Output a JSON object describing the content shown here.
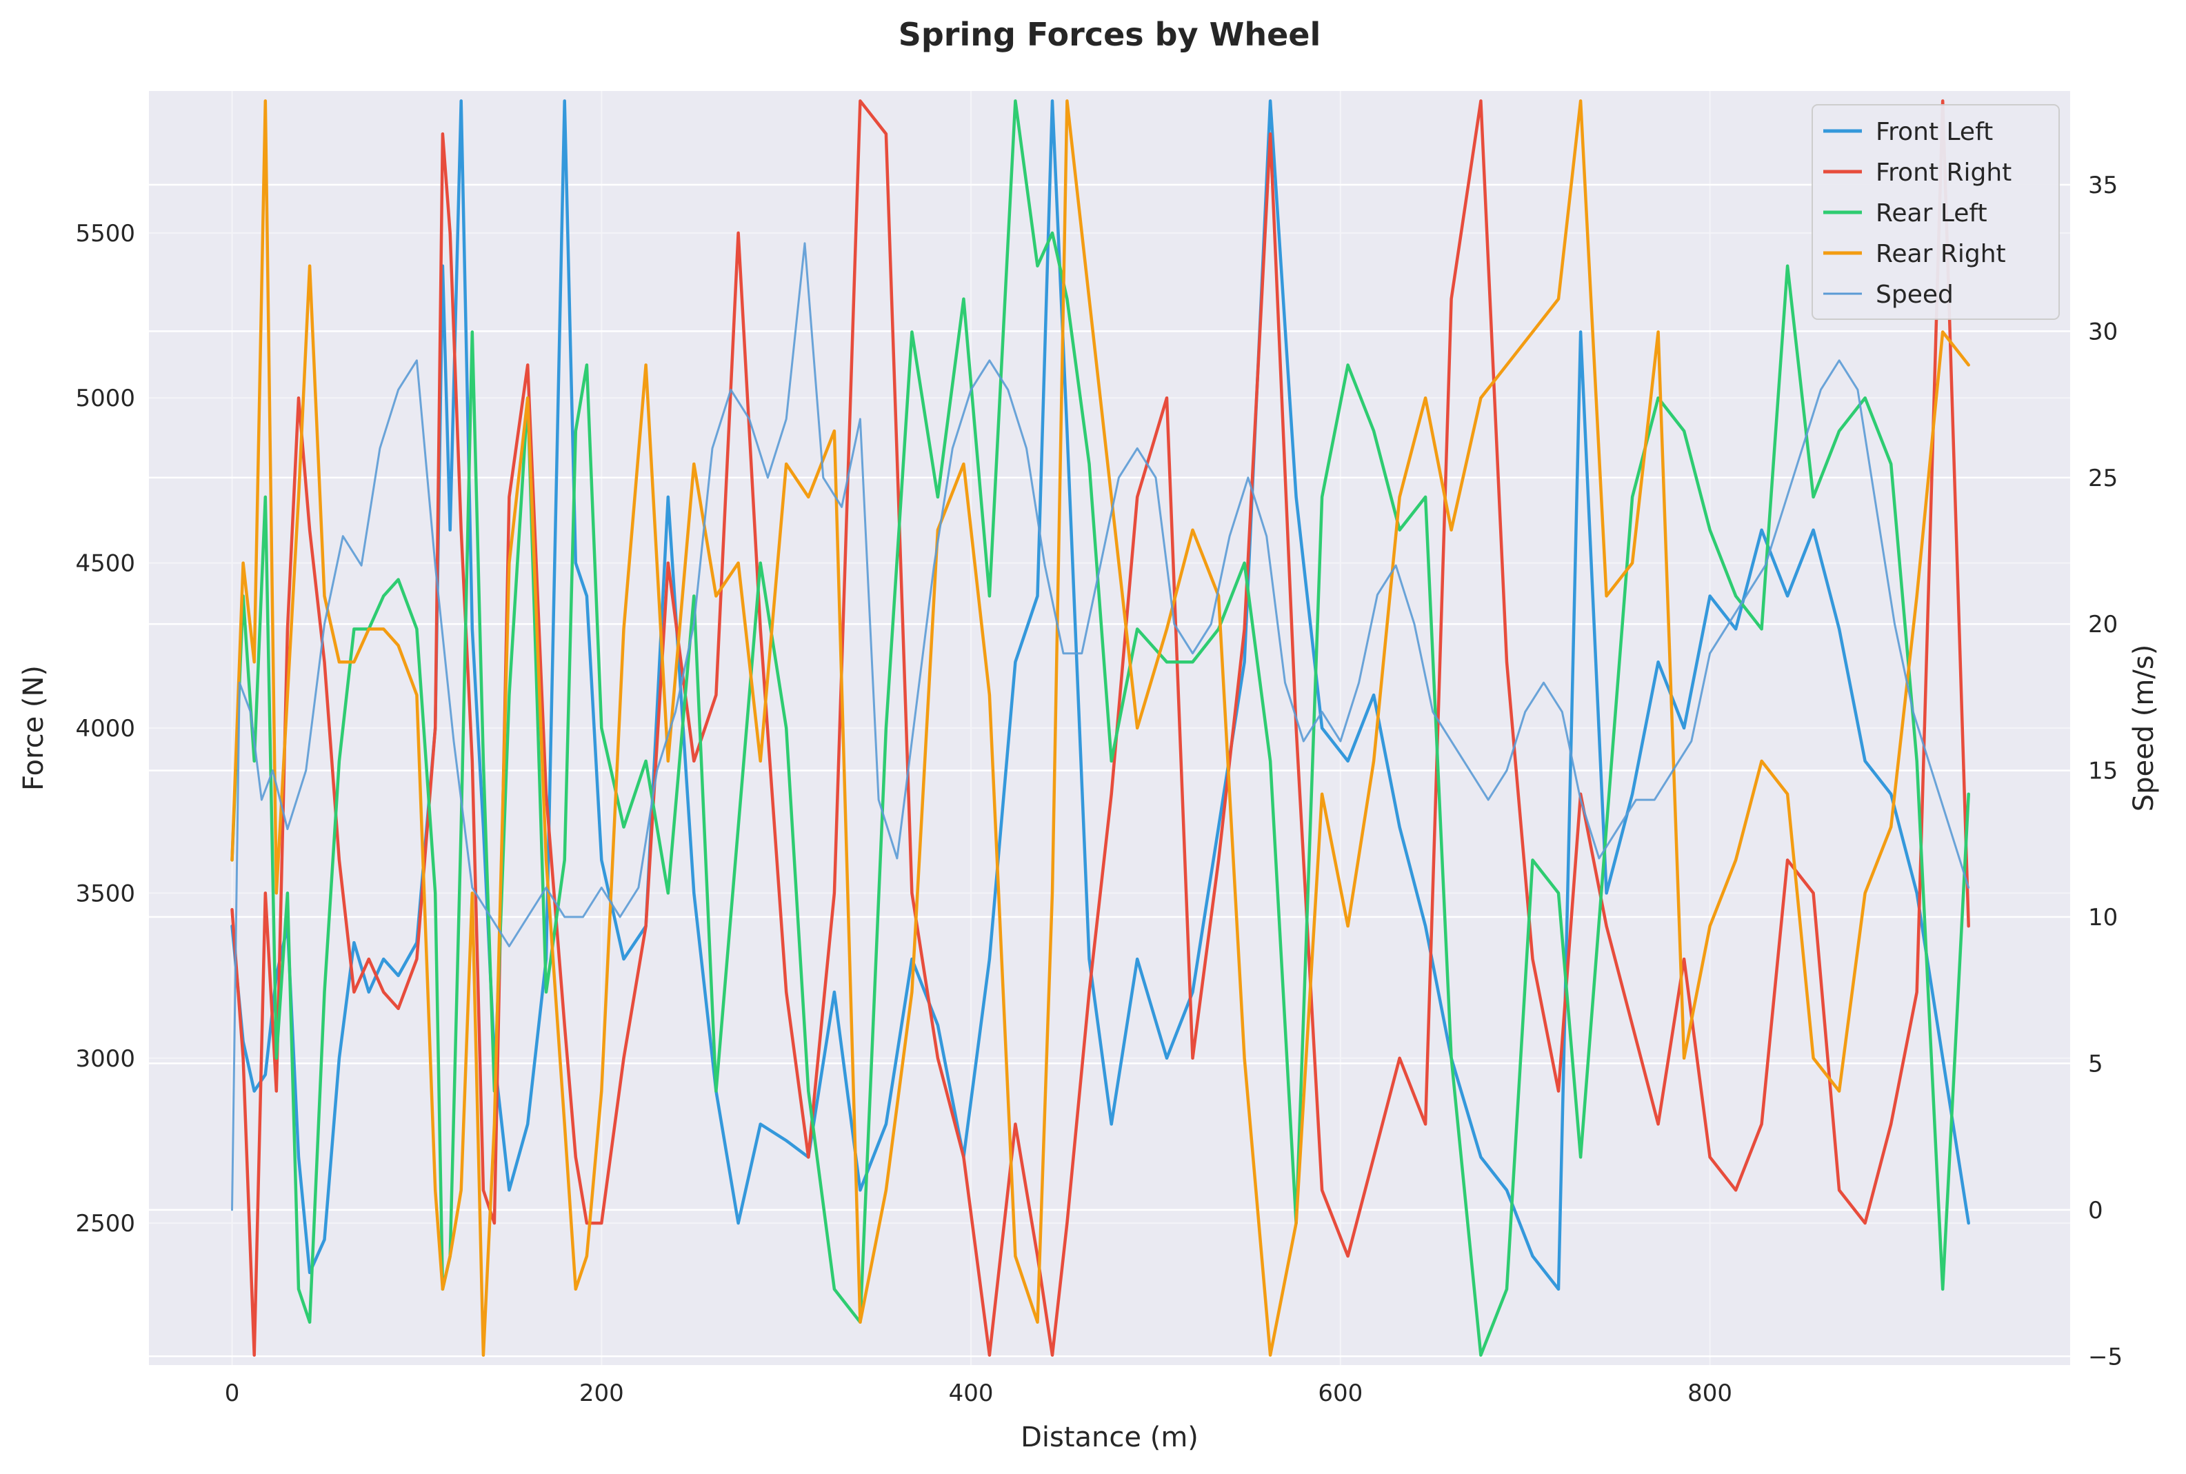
{
  "chart_data": {
    "type": "line",
    "title": "Spring Forces by Wheel",
    "xlabel": "Distance (m)",
    "ylabel": "Force (N)",
    "y2label": "Speed (m/s)",
    "xlim": [
      -45,
      995
    ],
    "ylim": [
      2070,
      5930
    ],
    "y2lim": [
      -5.3,
      38.2
    ],
    "x_ticks": [
      0,
      200,
      400,
      600,
      800
    ],
    "y_ticks": [
      2500,
      3000,
      3500,
      4000,
      4500,
      5000,
      5500
    ],
    "y2_ticks": [
      -5,
      0,
      5,
      10,
      15,
      20,
      25,
      30,
      35
    ],
    "grid": true,
    "legend_position": "top-right",
    "series": [
      {
        "name": "Front Left",
        "color": "#3498db",
        "axis": "left",
        "x": [
          0,
          6,
          12,
          18,
          24,
          30,
          36,
          42,
          50,
          58,
          66,
          74,
          82,
          90,
          100,
          110,
          114,
          118,
          124,
          130,
          136,
          142,
          150,
          160,
          170,
          180,
          186,
          192,
          200,
          212,
          224,
          236,
          250,
          262,
          274,
          286,
          300,
          312,
          326,
          340,
          354,
          368,
          382,
          396,
          410,
          424,
          436,
          444,
          452,
          464,
          476,
          490,
          506,
          520,
          534,
          548,
          562,
          576,
          590,
          604,
          618,
          632,
          646,
          660,
          676,
          690,
          704,
          718,
          730,
          744,
          758,
          772,
          786,
          800,
          814,
          828,
          842,
          856,
          870,
          884,
          898,
          912,
          926,
          940
        ],
        "y": [
          3400,
          3050,
          2900,
          2950,
          3250,
          3400,
          2700,
          2350,
          2450,
          3000,
          3350,
          3200,
          3300,
          3250,
          3350,
          4000,
          5400,
          4600,
          5900,
          4300,
          3700,
          3000,
          2600,
          2800,
          3300,
          5900,
          4500,
          4400,
          3600,
          3300,
          3400,
          4700,
          3500,
          2900,
          2500,
          2800,
          2750,
          2700,
          3200,
          2600,
          2800,
          3300,
          3100,
          2700,
          3300,
          4200,
          4400,
          5900,
          4900,
          3300,
          2800,
          3300,
          3000,
          3200,
          3700,
          4200,
          5900,
          4700,
          4000,
          3900,
          4100,
          3700,
          3400,
          3000,
          2700,
          2600,
          2400,
          2300,
          5200,
          3500,
          3800,
          4200,
          4000,
          4400,
          4300,
          4600,
          4400,
          4600,
          4300,
          3900,
          3800,
          3500,
          3000,
          2500
        ]
      },
      {
        "name": "Front Right",
        "color": "#e74c3c",
        "axis": "left",
        "x": [
          0,
          6,
          12,
          18,
          24,
          30,
          36,
          42,
          50,
          58,
          66,
          74,
          82,
          90,
          100,
          110,
          114,
          118,
          124,
          130,
          136,
          142,
          150,
          160,
          170,
          180,
          186,
          192,
          200,
          212,
          224,
          236,
          250,
          262,
          274,
          286,
          300,
          312,
          326,
          340,
          354,
          368,
          382,
          396,
          410,
          424,
          436,
          444,
          452,
          464,
          476,
          490,
          506,
          520,
          534,
          548,
          562,
          576,
          590,
          604,
          618,
          632,
          646,
          660,
          676,
          690,
          704,
          718,
          730,
          744,
          758,
          772,
          786,
          800,
          814,
          828,
          842,
          856,
          870,
          884,
          898,
          912,
          926,
          940
        ],
        "y": [
          3450,
          3000,
          2100,
          3500,
          2900,
          4300,
          5000,
          4600,
          4200,
          3600,
          3200,
          3300,
          3200,
          3150,
          3300,
          4000,
          5800,
          5500,
          4600,
          3900,
          2600,
          2500,
          4700,
          5100,
          3800,
          3100,
          2700,
          2500,
          2500,
          3000,
          3400,
          4500,
          3900,
          4100,
          5500,
          4300,
          3200,
          2700,
          3500,
          5900,
          5800,
          3500,
          3000,
          2700,
          2100,
          2800,
          2400,
          2100,
          2500,
          3200,
          3800,
          4700,
          5000,
          3000,
          3600,
          4300,
          5800,
          4000,
          2600,
          2400,
          2700,
          3000,
          2800,
          5300,
          5900,
          4200,
          3300,
          2900,
          3800,
          3400,
          3100,
          2800,
          3300,
          2700,
          2600,
          2800,
          3600,
          3500,
          2600,
          2500,
          2800,
          3200,
          5900,
          3400
        ]
      },
      {
        "name": "Rear Left",
        "color": "#2ecc71",
        "axis": "left",
        "x": [
          0,
          6,
          12,
          18,
          24,
          30,
          36,
          42,
          50,
          58,
          66,
          74,
          82,
          90,
          100,
          110,
          114,
          118,
          124,
          130,
          136,
          142,
          150,
          160,
          170,
          180,
          186,
          192,
          200,
          212,
          224,
          236,
          250,
          262,
          274,
          286,
          300,
          312,
          326,
          340,
          354,
          368,
          382,
          396,
          410,
          424,
          436,
          444,
          452,
          464,
          476,
          490,
          506,
          520,
          534,
          548,
          562,
          576,
          590,
          604,
          618,
          632,
          646,
          660,
          676,
          690,
          704,
          718,
          730,
          744,
          758,
          772,
          786,
          800,
          814,
          828,
          842,
          856,
          870,
          884,
          898,
          912,
          926,
          940
        ],
        "y": [
          3600,
          4400,
          3900,
          4700,
          3000,
          3500,
          2300,
          2200,
          3200,
          3900,
          4300,
          4300,
          4400,
          4450,
          4300,
          3500,
          2300,
          2400,
          3700,
          5200,
          3900,
          2900,
          4100,
          5000,
          3200,
          3600,
          4900,
          5100,
          4000,
          3700,
          3900,
          3500,
          4400,
          2900,
          3700,
          4500,
          4000,
          2900,
          2300,
          2200,
          4000,
          5200,
          4700,
          5300,
          4400,
          5900,
          5400,
          5500,
          5300,
          4800,
          3900,
          4300,
          4200,
          4200,
          4300,
          4500,
          3900,
          2500,
          4700,
          5100,
          4900,
          4600,
          4700,
          3000,
          2100,
          2300,
          3600,
          3500,
          2700,
          3700,
          4700,
          5000,
          4900,
          4600,
          4400,
          4300,
          5400,
          4700,
          4900,
          5000,
          4800,
          3900,
          2300,
          3800
        ]
      },
      {
        "name": "Rear Right",
        "color": "#f39c12",
        "axis": "left",
        "x": [
          0,
          6,
          12,
          18,
          24,
          30,
          36,
          42,
          50,
          58,
          66,
          74,
          82,
          90,
          100,
          110,
          114,
          118,
          124,
          130,
          136,
          142,
          150,
          160,
          170,
          180,
          186,
          192,
          200,
          212,
          224,
          236,
          250,
          262,
          274,
          286,
          300,
          312,
          326,
          340,
          354,
          368,
          382,
          396,
          410,
          424,
          436,
          444,
          452,
          464,
          476,
          490,
          506,
          520,
          534,
          548,
          562,
          576,
          590,
          604,
          618,
          632,
          646,
          660,
          676,
          690,
          704,
          718,
          730,
          744,
          758,
          772,
          786,
          800,
          814,
          828,
          842,
          856,
          870,
          884,
          898,
          912,
          926,
          940
        ],
        "y": [
          3600,
          4500,
          4200,
          5900,
          3500,
          4100,
          4700,
          5400,
          4400,
          4200,
          4200,
          4300,
          4300,
          4250,
          4100,
          2600,
          2300,
          2400,
          2600,
          3500,
          2100,
          2800,
          4500,
          5000,
          3600,
          2800,
          2300,
          2400,
          2900,
          4300,
          5100,
          3900,
          4800,
          4400,
          4500,
          3900,
          4800,
          4700,
          4900,
          2200,
          2600,
          3200,
          4600,
          4800,
          4100,
          2400,
          2200,
          3500,
          5900,
          5300,
          4700,
          4000,
          4300,
          4600,
          4400,
          3000,
          2100,
          2500,
          3800,
          3400,
          3900,
          4700,
          5000,
          4600,
          5000,
          5100,
          5200,
          5300,
          5900,
          4400,
          4500,
          5200,
          3000,
          3400,
          3600,
          3900,
          3800,
          3000,
          2900,
          3500,
          3700,
          4400,
          5200,
          5100
        ]
      },
      {
        "name": "Speed",
        "color": "#5b9bd5",
        "axis": "right",
        "x": [
          0,
          4,
          10,
          16,
          22,
          30,
          40,
          50,
          60,
          70,
          80,
          90,
          100,
          110,
          120,
          130,
          140,
          150,
          160,
          170,
          180,
          190,
          200,
          210,
          220,
          230,
          240,
          250,
          260,
          270,
          280,
          290,
          300,
          310,
          320,
          330,
          340,
          350,
          360,
          370,
          380,
          390,
          400,
          410,
          420,
          430,
          440,
          450,
          460,
          470,
          480,
          490,
          500,
          510,
          520,
          530,
          540,
          550,
          560,
          570,
          580,
          590,
          600,
          610,
          620,
          630,
          640,
          650,
          660,
          670,
          680,
          690,
          700,
          710,
          720,
          730,
          740,
          750,
          760,
          770,
          780,
          790,
          800,
          810,
          820,
          830,
          840,
          850,
          860,
          870,
          880,
          890,
          900,
          910,
          920,
          930,
          940
        ],
        "y": [
          0,
          18,
          17,
          14,
          15,
          13,
          15,
          20,
          23,
          22,
          26,
          28,
          29,
          22,
          16,
          11,
          10,
          9,
          10,
          11,
          10,
          10,
          11,
          10,
          11,
          15,
          17,
          20,
          26,
          28,
          27,
          25,
          27,
          33,
          25,
          24,
          27,
          14,
          12,
          17,
          22,
          26,
          28,
          29,
          28,
          26,
          22,
          19,
          19,
          22,
          25,
          26,
          25,
          20,
          19,
          20,
          23,
          25,
          23,
          18,
          16,
          17,
          16,
          18,
          21,
          22,
          20,
          17,
          16,
          15,
          14,
          15,
          17,
          18,
          17,
          14,
          12,
          13,
          14,
          14,
          15,
          16,
          19,
          20,
          21,
          22,
          24,
          26,
          28,
          29,
          28,
          24,
          20,
          17,
          15,
          13,
          11
        ]
      }
    ]
  }
}
